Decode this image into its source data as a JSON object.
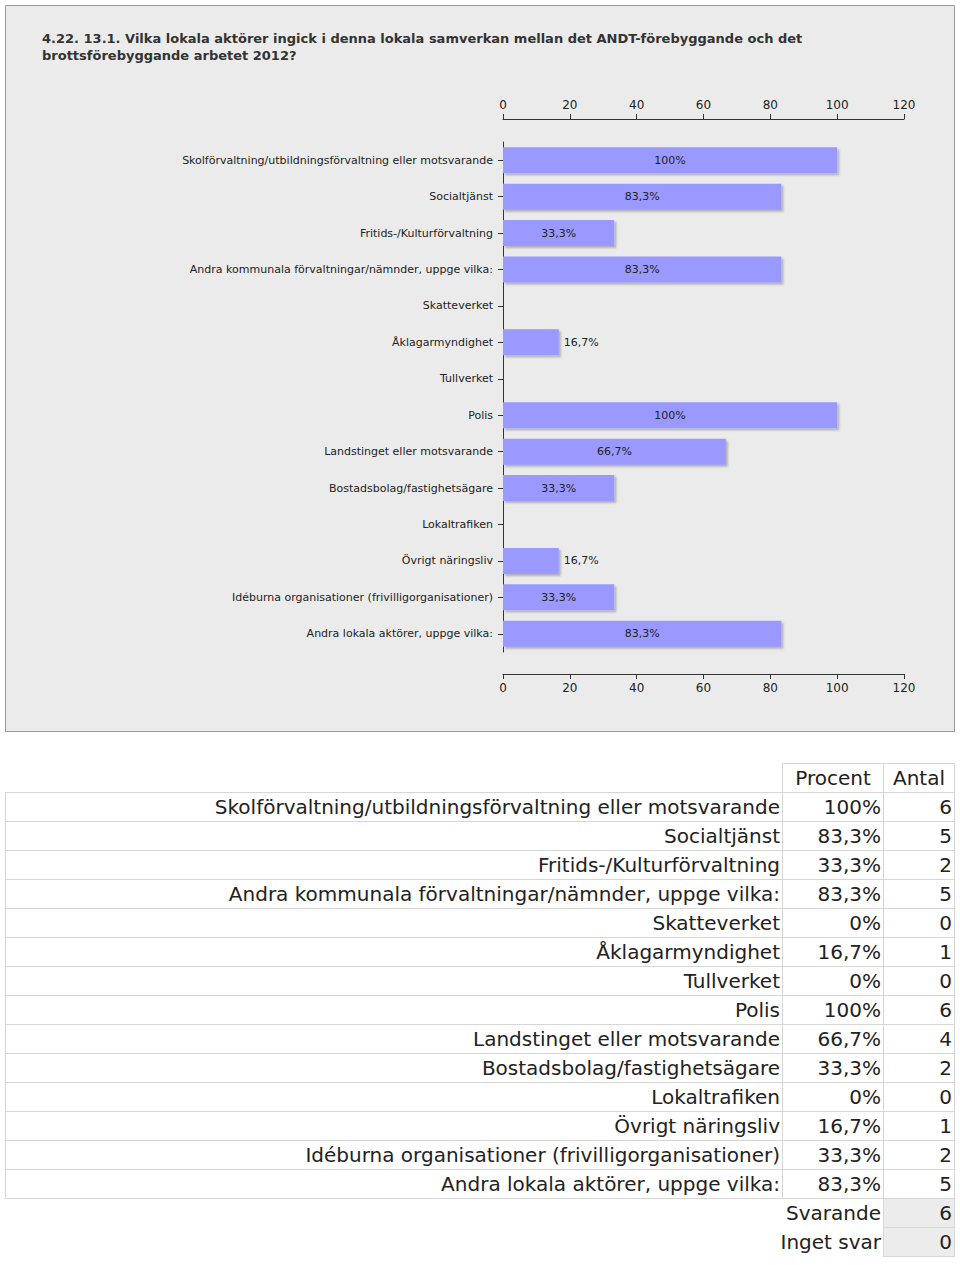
{
  "chart_data": {
    "type": "bar",
    "orientation": "horizontal",
    "title": "4.22. 13.1. Vilka lokala aktörer ingick i denna lokala samverkan mellan det ANDT-förebyggande och det brottsförebyggande arbetet 2012?",
    "categories": [
      "Skolförvaltning/utbildningsförvaltning eller motsvarande",
      "Socialtjänst",
      "Fritids-/Kulturförvaltning",
      "Andra kommunala förvaltningar/nämnder, uppge vilka:",
      "Skatteverket",
      "Åklagarmyndighet",
      "Tullverket",
      "Polis",
      "Landstinget eller motsvarande",
      "Bostadsbolag/fastighetsägare",
      "Lokaltrafiken",
      "Övrigt näringsliv",
      "Idéburna organisationer (frivilligorganisationer)",
      "Andra lokala aktörer, uppge vilka:"
    ],
    "values": [
      100,
      83.3,
      33.3,
      83.3,
      0,
      16.7,
      0,
      100,
      66.7,
      33.3,
      0,
      16.7,
      33.3,
      83.3
    ],
    "value_labels": [
      "100%",
      "83,3%",
      "33,3%",
      "83,3%",
      null,
      "16,7%",
      null,
      "100%",
      "66,7%",
      "33,3%",
      null,
      "16,7%",
      "33,3%",
      "83,3%"
    ],
    "data_labels": true,
    "color": "#9999ff",
    "xlim": [
      0,
      120
    ],
    "xticks": [
      0,
      20,
      40,
      60,
      80,
      100,
      120
    ],
    "grid": false
  },
  "table": {
    "header": [
      "Procent",
      "Antal"
    ],
    "rows": [
      [
        "Skolförvaltning/utbildningsförvaltning eller motsvarande",
        "100%",
        6
      ],
      [
        "Socialtjänst",
        "83,3%",
        5
      ],
      [
        "Fritids-/Kulturförvaltning",
        "33,3%",
        2
      ],
      [
        "Andra kommunala förvaltningar/nämnder, uppge vilka:",
        "83,3%",
        5
      ],
      [
        "Skatteverket",
        "0%",
        0
      ],
      [
        "Åklagarmyndighet",
        "16,7%",
        1
      ],
      [
        "Tullverket",
        "0%",
        0
      ],
      [
        "Polis",
        "100%",
        6
      ],
      [
        "Landstinget eller motsvarande",
        "66,7%",
        4
      ],
      [
        "Bostadsbolag/fastighetsägare",
        "33,3%",
        2
      ],
      [
        "Lokaltrafiken",
        "0%",
        0
      ],
      [
        "Övrigt näringsliv",
        "16,7%",
        1
      ],
      [
        "Idéburna organisationer (frivilligorganisationer)",
        "33,3%",
        2
      ],
      [
        "Andra lokala aktörer, uppge vilka:",
        "83,3%",
        5
      ]
    ],
    "summary": [
      [
        "Svarande",
        6
      ],
      [
        "Inget svar",
        0
      ]
    ]
  }
}
